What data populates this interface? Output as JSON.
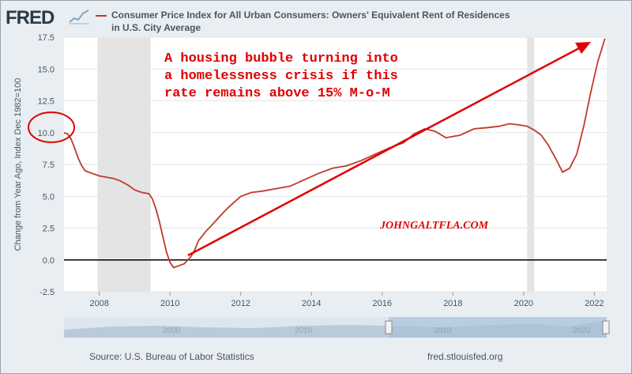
{
  "header": {
    "logo_text": "FRED",
    "title": "Consumer Price Index for All Urban Consumers: Owners' Equivalent Rent of Residences",
    "subtitle": "in U.S. City Average",
    "series_color": "#c0392b"
  },
  "footer": {
    "source": "Source: U.S. Bureau of Labor Statistics",
    "site": "fred.stlouisfed.org"
  },
  "navigator": {
    "year_labels": [
      "2000",
      "2010",
      "2020"
    ]
  },
  "annotations": {
    "callout_lines": [
      "A housing bubble turning into",
      "a homelessness crisis if this",
      "rate remains above 15% M-o-M"
    ],
    "watermark": "JOHNGALTFLA.COM",
    "color": "#e00000"
  },
  "chart_data": {
    "type": "line",
    "title": "Consumer Price Index for All Urban Consumers: Owners' Equivalent Rent of Residences in U.S. City Average",
    "ylabel": "Change from Year Ago, Index Dec 1982=100",
    "xlabel": "",
    "xlim": [
      2007.0,
      2022.35
    ],
    "ylim": [
      -2.5,
      17.5
    ],
    "yticks": [
      -2.5,
      0.0,
      2.5,
      5.0,
      7.5,
      10.0,
      12.5,
      15.0,
      17.5
    ],
    "ytick_labels": [
      "-2.5",
      "0.0",
      "2.5",
      "5.0",
      "7.5",
      "10.0",
      "12.5",
      "15.0",
      "17.5"
    ],
    "xticks": [
      2008,
      2010,
      2012,
      2014,
      2016,
      2018,
      2020,
      2022
    ],
    "xtick_labels": [
      "2008",
      "2010",
      "2012",
      "2014",
      "2016",
      "2018",
      "2020",
      "2022"
    ],
    "recessions": [
      [
        2007.95,
        2009.45
      ],
      [
        2020.1,
        2020.3
      ]
    ],
    "grid": "horizontal",
    "series": [
      {
        "color": "#c0392b",
        "x": [
          2007.0,
          2007.1,
          2007.2,
          2007.3,
          2007.4,
          2007.5,
          2007.6,
          2007.8,
          2008.0,
          2008.2,
          2008.4,
          2008.6,
          2008.8,
          2009.0,
          2009.2,
          2009.4,
          2009.5,
          2009.6,
          2009.7,
          2009.8,
          2009.9,
          2010.0,
          2010.1,
          2010.2,
          2010.3,
          2010.4,
          2010.5,
          2010.6,
          2010.7,
          2010.8,
          2011.0,
          2011.2,
          2011.4,
          2011.6,
          2011.8,
          2012.0,
          2012.3,
          2012.6,
          2013.0,
          2013.4,
          2013.8,
          2014.2,
          2014.6,
          2015.0,
          2015.4,
          2015.8,
          2016.2,
          2016.6,
          2016.9,
          2017.2,
          2017.5,
          2017.8,
          2018.2,
          2018.6,
          2019.0,
          2019.3,
          2019.6,
          2019.9,
          2020.1,
          2020.3,
          2020.5,
          2020.7,
          2020.9,
          2021.1,
          2021.3,
          2021.5,
          2021.7,
          2021.9,
          2022.1,
          2022.3
        ],
        "values": [
          10.0,
          9.9,
          9.5,
          8.8,
          8.0,
          7.4,
          7.0,
          6.8,
          6.6,
          6.5,
          6.4,
          6.2,
          5.9,
          5.5,
          5.3,
          5.2,
          4.8,
          4.0,
          3.0,
          1.8,
          0.6,
          -0.2,
          -0.6,
          -0.5,
          -0.4,
          -0.3,
          0.0,
          0.3,
          0.8,
          1.5,
          2.2,
          2.8,
          3.4,
          4.0,
          4.5,
          5.0,
          5.3,
          5.4,
          5.6,
          5.8,
          6.3,
          6.8,
          7.2,
          7.4,
          7.8,
          8.3,
          8.8,
          9.2,
          9.9,
          10.3,
          10.1,
          9.6,
          9.8,
          10.3,
          10.4,
          10.5,
          10.7,
          10.6,
          10.5,
          10.2,
          9.8,
          9.0,
          8.0,
          6.9,
          7.2,
          8.3,
          10.5,
          13.2,
          15.6,
          17.4
        ]
      }
    ]
  }
}
